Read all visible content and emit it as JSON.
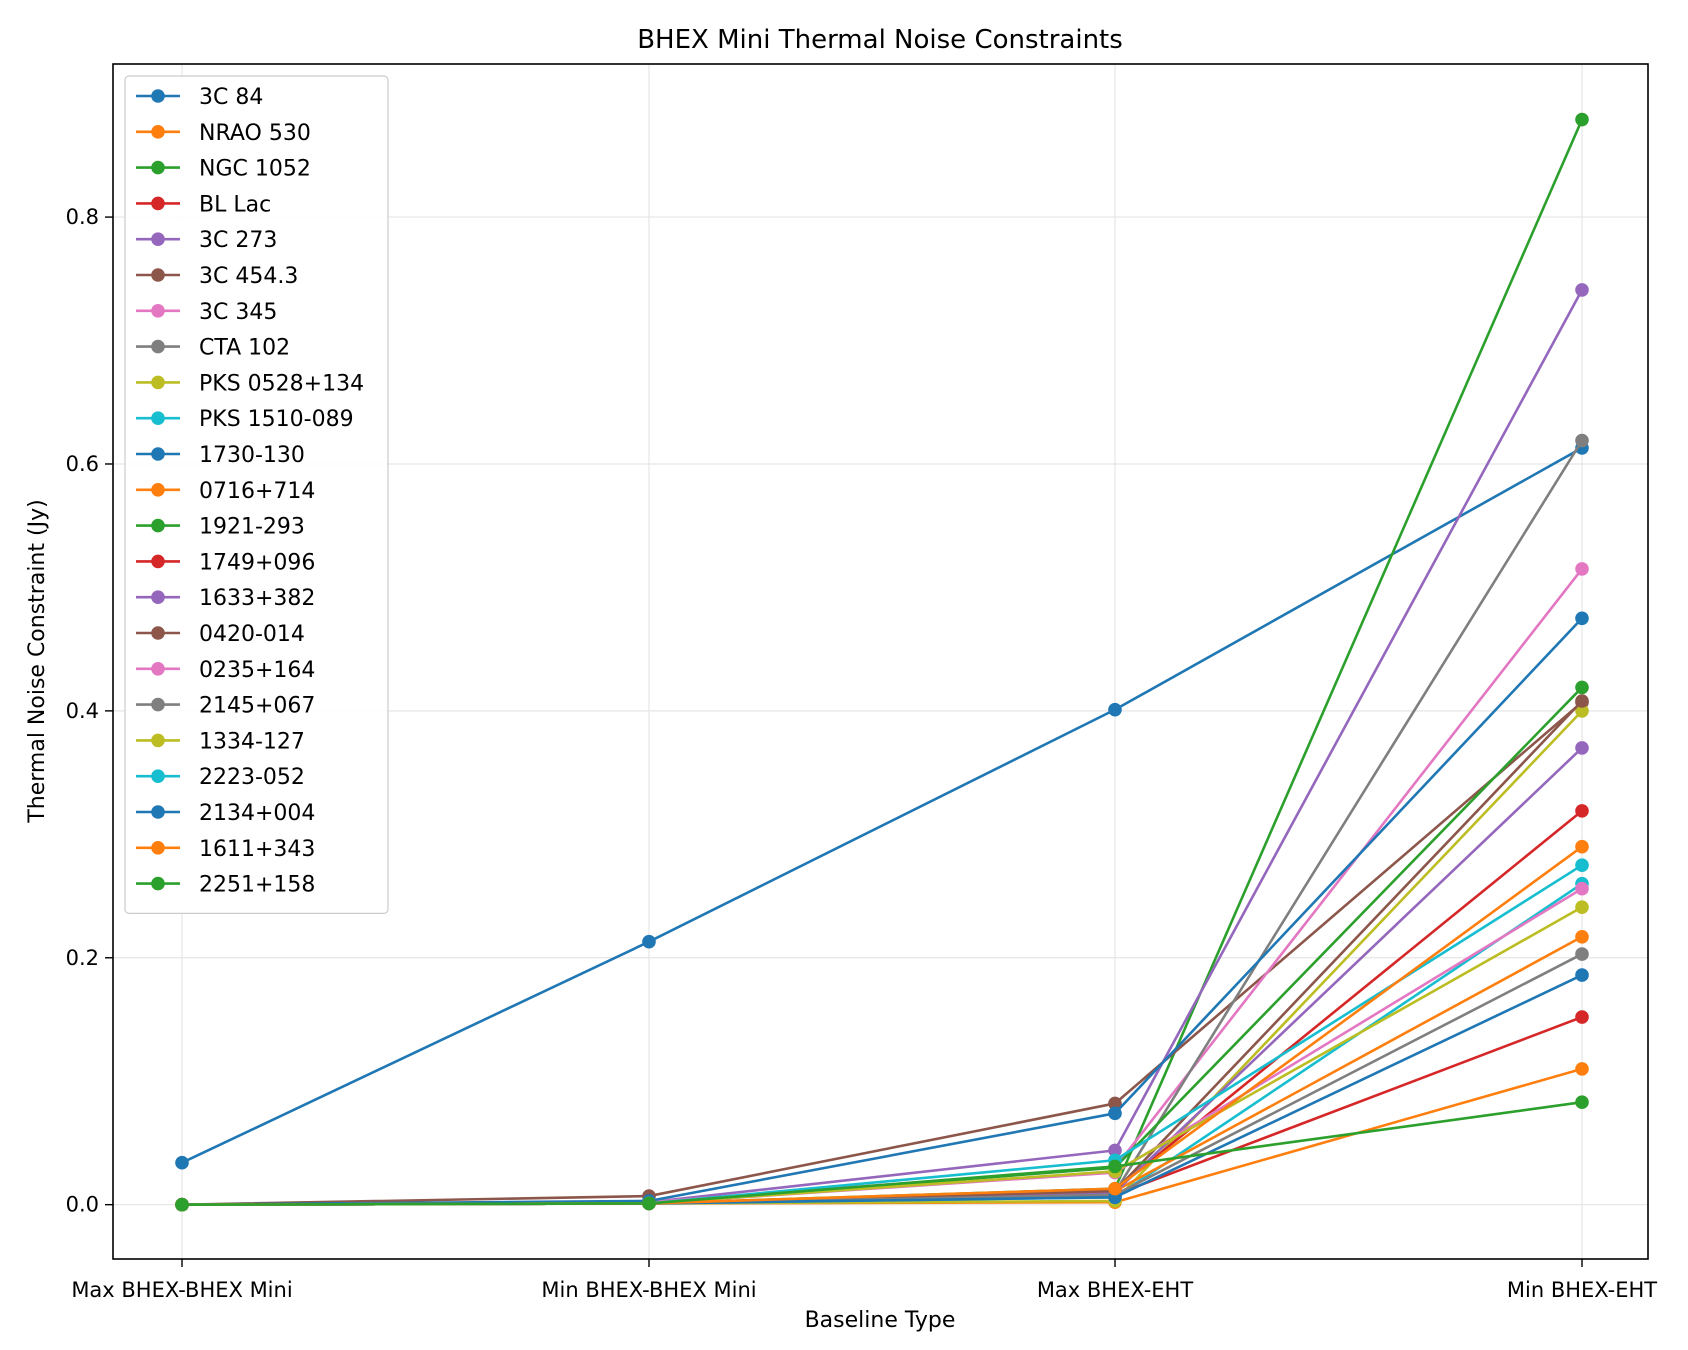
{
  "chart_data": {
    "type": "line",
    "title": "BHEX Mini Thermal Noise Constraints",
    "xlabel": "Baseline Type",
    "ylabel": "Thermal Noise Constraint (Jy)",
    "categories": [
      "Max BHEX-BHEX Mini",
      "Min BHEX-BHEX Mini",
      "Max BHEX-EHT",
      "Min BHEX-EHT"
    ],
    "ylim": [
      -0.044,
      0.924
    ],
    "yticks": [
      0.0,
      0.2,
      0.4,
      0.6,
      0.8
    ],
    "ytick_labels": [
      "0.0",
      "0.2",
      "0.4",
      "0.6",
      "0.8"
    ],
    "grid": true,
    "legend_position": "upper-left",
    "series": [
      {
        "name": "3C 84",
        "color": "#1f77b4",
        "values": [
          0.034,
          0.213,
          0.401,
          0.613
        ]
      },
      {
        "name": "NRAO 530",
        "color": "#ff7f0e",
        "values": [
          0.0,
          0.001,
          0.002,
          0.11
        ]
      },
      {
        "name": "NGC 1052",
        "color": "#2ca02c",
        "values": [
          0.0,
          0.001,
          0.013,
          0.879
        ]
      },
      {
        "name": "BL Lac",
        "color": "#d62728",
        "values": [
          0.0,
          0.001,
          0.008,
          0.152
        ]
      },
      {
        "name": "3C 273",
        "color": "#9467bd",
        "values": [
          0.0,
          0.002,
          0.044,
          0.741
        ]
      },
      {
        "name": "3C 454.3",
        "color": "#8c564b",
        "values": [
          0.0,
          0.007,
          0.082,
          0.407
        ]
      },
      {
        "name": "3C 345",
        "color": "#e377c2",
        "values": [
          0.0,
          0.002,
          0.03,
          0.515
        ]
      },
      {
        "name": "CTA 102",
        "color": "#7f7f7f",
        "values": [
          0.0,
          0.001,
          0.01,
          0.619
        ]
      },
      {
        "name": "PKS 0528+134",
        "color": "#bcbd22",
        "values": [
          0.0,
          0.001,
          0.003,
          0.4
        ]
      },
      {
        "name": "PKS 1510-089",
        "color": "#17becf",
        "values": [
          0.0,
          0.001,
          0.006,
          0.26
        ]
      },
      {
        "name": "1730-130",
        "color": "#1f77b4",
        "values": [
          0.0,
          0.003,
          0.074,
          0.475
        ]
      },
      {
        "name": "0716+714",
        "color": "#ff7f0e",
        "values": [
          0.0,
          0.001,
          0.011,
          0.217
        ]
      },
      {
        "name": "1921-293",
        "color": "#2ca02c",
        "values": [
          0.0,
          0.001,
          0.03,
          0.419
        ]
      },
      {
        "name": "1749+096",
        "color": "#d62728",
        "values": [
          0.0,
          0.001,
          0.012,
          0.319
        ]
      },
      {
        "name": "1633+382",
        "color": "#9467bd",
        "values": [
          0.0,
          0.001,
          0.01,
          0.37
        ]
      },
      {
        "name": "0420-014",
        "color": "#8c564b",
        "values": [
          0.0,
          0.001,
          0.011,
          0.408
        ]
      },
      {
        "name": "0235+164",
        "color": "#e377c2",
        "values": [
          0.0,
          0.001,
          0.026,
          0.256
        ]
      },
      {
        "name": "2145+067",
        "color": "#7f7f7f",
        "values": [
          0.0,
          0.001,
          0.008,
          0.203
        ]
      },
      {
        "name": "1334-127",
        "color": "#bcbd22",
        "values": [
          0.0,
          0.001,
          0.027,
          0.241
        ]
      },
      {
        "name": "2223-052",
        "color": "#17becf",
        "values": [
          0.0,
          0.001,
          0.036,
          0.275
        ]
      },
      {
        "name": "2134+004",
        "color": "#1f77b4",
        "values": [
          0.0,
          0.001,
          0.006,
          0.186
        ]
      },
      {
        "name": "1611+343",
        "color": "#ff7f0e",
        "values": [
          0.0,
          0.001,
          0.013,
          0.29
        ]
      },
      {
        "name": "2251+158",
        "color": "#2ca02c",
        "values": [
          0.0,
          0.001,
          0.031,
          0.083
        ]
      }
    ]
  }
}
